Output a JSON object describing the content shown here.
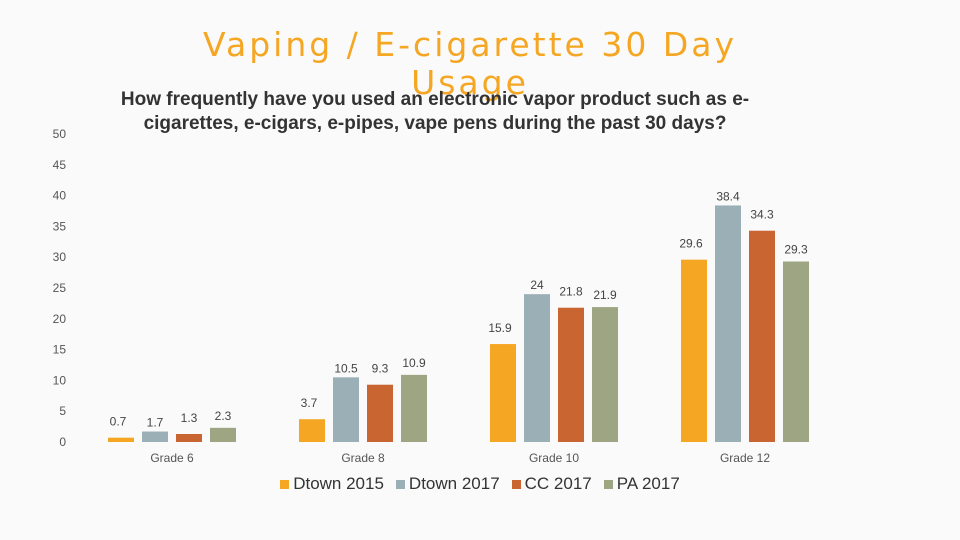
{
  "title": "Vaping / E-cigarette  30 Day Usage",
  "subtitle": "How frequently have you used an electronic vapor product such as e-cigarettes, e-cigars, e-pipes, vape pens during the past 30 days?",
  "chart_data": {
    "type": "bar",
    "categories": [
      "Grade 6",
      "Grade 8",
      "Grade 10",
      "Grade 12"
    ],
    "series": [
      {
        "name": "Dtown 2015",
        "color": "#F5A623",
        "values": [
          0.7,
          3.7,
          15.9,
          29.6
        ]
      },
      {
        "name": "Dtown 2017",
        "color": "#9BAFB6",
        "values": [
          1.7,
          10.5,
          24,
          38.4
        ]
      },
      {
        "name": "CC 2017",
        "color": "#C96530",
        "values": [
          1.3,
          9.3,
          21.8,
          34.3
        ]
      },
      {
        "name": "PA 2017",
        "color": "#9DA582",
        "values": [
          2.3,
          10.9,
          21.9,
          29.3
        ]
      }
    ],
    "yticks": [
      0,
      5,
      10,
      15,
      20,
      25,
      30,
      35,
      40,
      45,
      50
    ],
    "ylim": [
      0,
      50
    ],
    "grid": false,
    "legend": "bottom"
  }
}
